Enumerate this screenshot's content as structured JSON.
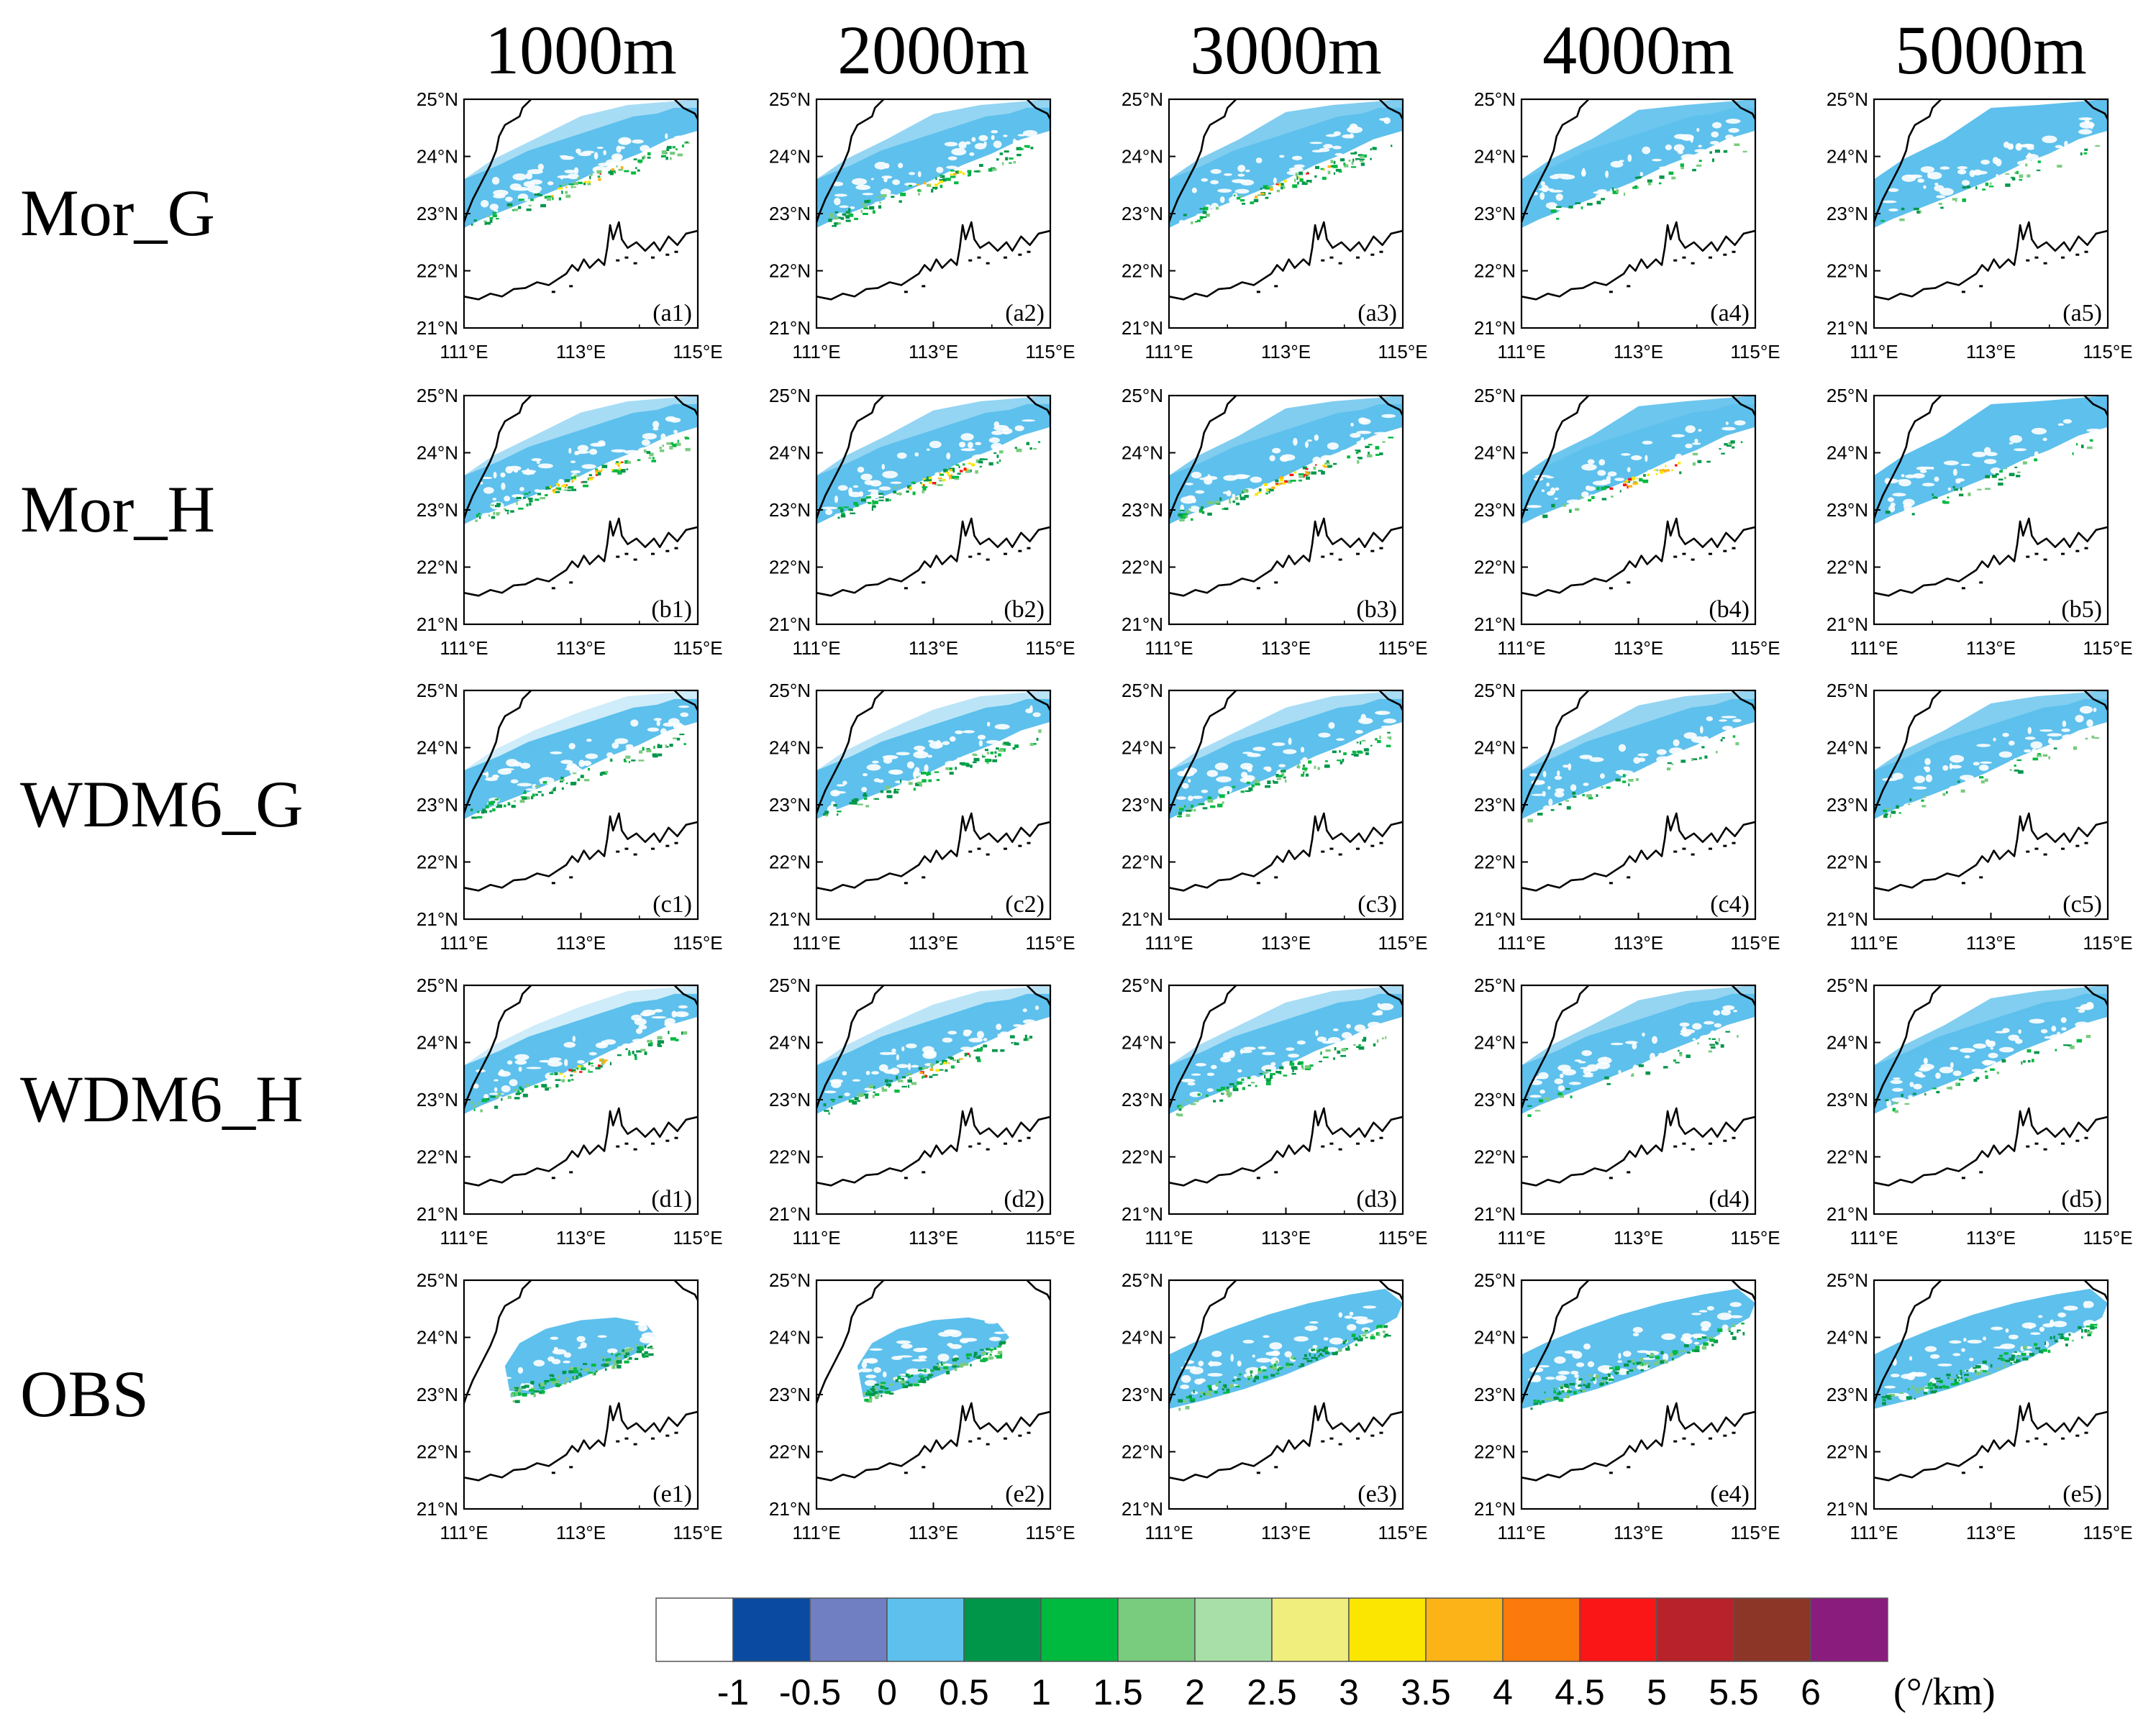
{
  "columns": [
    "1000m",
    "2000m",
    "3000m",
    "4000m",
    "5000m"
  ],
  "rows": [
    {
      "name": "Mor_G",
      "panels": [
        "(a1)",
        "(a2)",
        "(a3)",
        "(a4)",
        "(a5)"
      ]
    },
    {
      "name": "Mor_H",
      "panels": [
        "(b1)",
        "(b2)",
        "(b3)",
        "(b4)",
        "(b5)"
      ]
    },
    {
      "name": "WDM6_G",
      "panels": [
        "(c1)",
        "(c2)",
        "(c3)",
        "(c4)",
        "(c5)"
      ]
    },
    {
      "name": "WDM6_H",
      "panels": [
        "(d1)",
        "(d2)",
        "(d3)",
        "(d4)",
        "(d5)"
      ]
    },
    {
      "name": "OBS",
      "panels": [
        "(e1)",
        "(e2)",
        "(e3)",
        "(e4)",
        "(e5)"
      ]
    }
  ],
  "axes": {
    "lat_ticks": [
      "25°N",
      "24°N",
      "23°N",
      "22°N",
      "21°N"
    ],
    "lon_ticks": [
      "111°E",
      "113°E",
      "115°E"
    ]
  },
  "colorbar": {
    "colors": [
      "#ffffff",
      "#0a4aa0",
      "#6f7fc2",
      "#5ec0ec",
      "#00964a",
      "#00b93f",
      "#79cb7e",
      "#a8dfa8",
      "#f0ee7c",
      "#fae600",
      "#fbb317",
      "#fa7a0b",
      "#fa1616",
      "#b8222a",
      "#8c3628",
      "#8a1c7e"
    ],
    "labels": [
      "-1",
      "-0.5",
      "0",
      "0.5",
      "1",
      "1.5",
      "2",
      "2.5",
      "3",
      "3.5",
      "4",
      "4.5",
      "5",
      "5.5",
      "6"
    ],
    "unit": "(°/km)"
  },
  "palette": {
    "cloud": "#5ec0ec",
    "core": "#00b93f",
    "core_dark": "#00964a",
    "core_light": "#79cb7e",
    "hot_yellow": "#fae600",
    "hot_orange": "#fbb317",
    "hot_red": "#fa1616"
  }
}
